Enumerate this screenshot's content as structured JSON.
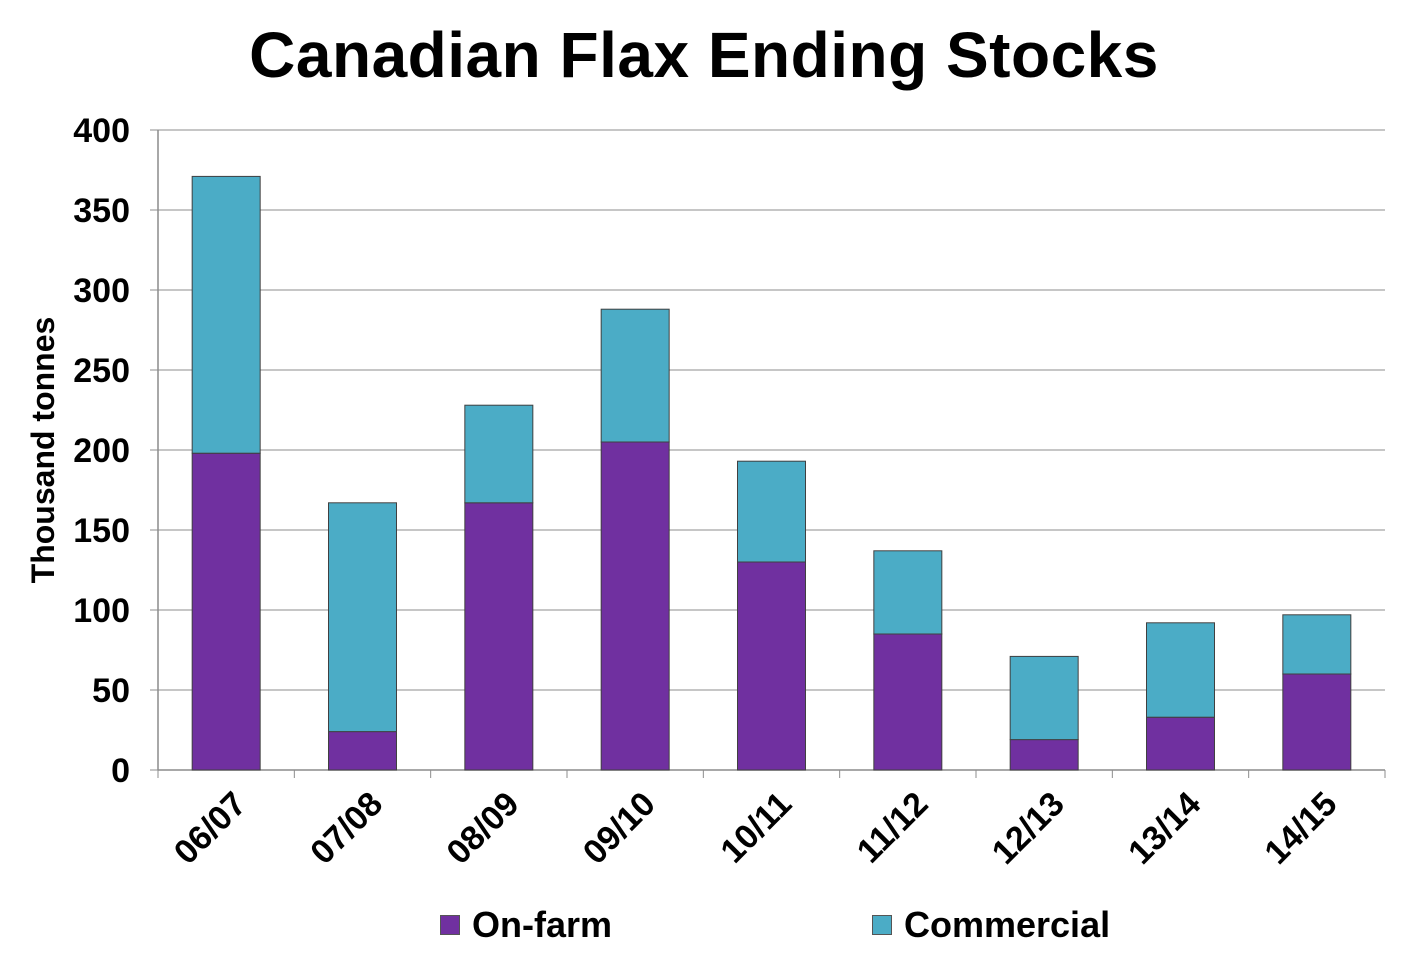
{
  "chart_data": {
    "type": "bar",
    "stacked": true,
    "title": "Canadian Flax Ending Stocks",
    "xlabel": "",
    "ylabel": "Thousand tonnes",
    "ylim": [
      0,
      400
    ],
    "yticks": [
      0,
      50,
      100,
      150,
      200,
      250,
      300,
      350,
      400
    ],
    "grid": true,
    "legend_position": "bottom",
    "categories": [
      "06/07",
      "07/08",
      "08/09",
      "09/10",
      "10/11",
      "11/12",
      "12/13",
      "13/14",
      "14/15"
    ],
    "series": [
      {
        "name": "On-farm",
        "color": "#7030A0",
        "values": [
          198,
          24,
          167,
          205,
          130,
          85,
          19,
          33,
          60
        ]
      },
      {
        "name": "Commercial",
        "color": "#4BACC6",
        "values": [
          173,
          143,
          61,
          83,
          63,
          52,
          52,
          59,
          37
        ]
      }
    ]
  }
}
